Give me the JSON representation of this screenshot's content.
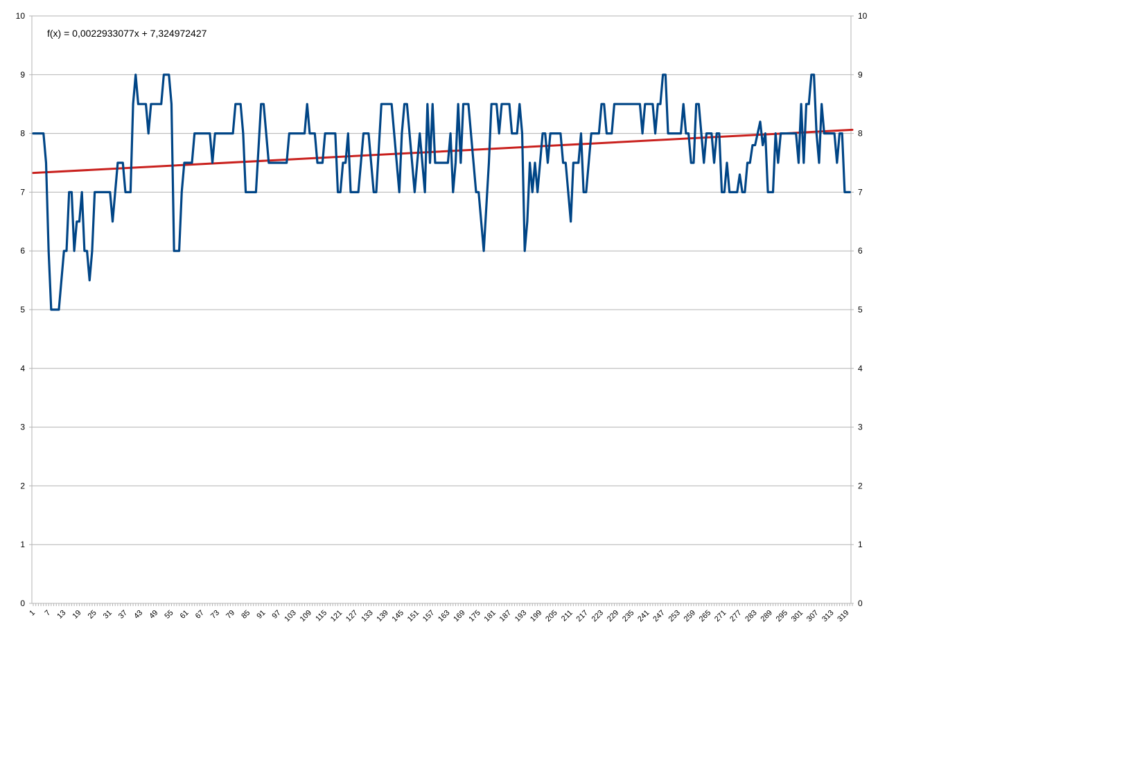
{
  "colors": {
    "series": "#004586",
    "trendline": "#c9211e",
    "grid": "#b3b3b3",
    "axis": "#b3b3b3",
    "background": "#ffffff"
  },
  "chart_data": {
    "type": "line",
    "title": "",
    "xlabel": "",
    "ylabel": "",
    "ylim": [
      0,
      10
    ],
    "yticks": [
      0,
      1,
      2,
      3,
      4,
      5,
      6,
      7,
      8,
      9,
      10
    ],
    "secondary_y_axis": true,
    "grid": "horizontal",
    "x_range": [
      1,
      321
    ],
    "x_tick_labels": [
      "1",
      "7",
      "13",
      "19",
      "25",
      "31",
      "37",
      "43",
      "49",
      "55",
      "61",
      "67",
      "73",
      "79",
      "85",
      "91",
      "97",
      "103",
      "109",
      "115",
      "121",
      "127",
      "133",
      "139",
      "145",
      "151",
      "157",
      "163",
      "169",
      "175",
      "181",
      "187",
      "193",
      "199",
      "205",
      "211",
      "217",
      "223",
      "229",
      "235",
      "241",
      "247",
      "253",
      "259",
      "265",
      "271",
      "277",
      "283",
      "289",
      "295",
      "301",
      "307",
      "313",
      "319"
    ],
    "series": [
      {
        "points": [
          [
            1,
            8
          ],
          [
            5,
            8
          ],
          [
            6,
            7.5
          ],
          [
            7,
            6
          ],
          [
            8,
            5
          ],
          [
            11,
            5
          ],
          [
            12,
            5.5
          ],
          [
            13,
            6
          ],
          [
            14,
            6
          ],
          [
            15,
            7
          ],
          [
            16,
            7
          ],
          [
            17,
            6
          ],
          [
            18,
            6.5
          ],
          [
            19,
            6.5
          ],
          [
            20,
            7
          ],
          [
            21,
            6
          ],
          [
            22,
            6
          ],
          [
            23,
            5.5
          ],
          [
            24,
            6
          ],
          [
            25,
            7
          ],
          [
            31,
            7
          ],
          [
            32,
            6.5
          ],
          [
            33,
            7
          ],
          [
            34,
            7.5
          ],
          [
            36,
            7.5
          ],
          [
            37,
            7
          ],
          [
            39,
            7
          ],
          [
            40,
            8.5
          ],
          [
            41,
            9
          ],
          [
            42,
            8.5
          ],
          [
            45,
            8.5
          ],
          [
            46,
            8
          ],
          [
            47,
            8.5
          ],
          [
            51,
            8.5
          ],
          [
            52,
            9
          ],
          [
            54,
            9
          ],
          [
            55,
            8.5
          ],
          [
            56,
            6
          ],
          [
            58,
            6
          ],
          [
            59,
            7
          ],
          [
            60,
            7.5
          ],
          [
            63,
            7.5
          ],
          [
            64,
            8
          ],
          [
            70,
            8
          ],
          [
            71,
            7.5
          ],
          [
            72,
            8
          ],
          [
            79,
            8
          ],
          [
            80,
            8.5
          ],
          [
            82,
            8.5
          ],
          [
            83,
            8
          ],
          [
            84,
            7
          ],
          [
            88,
            7
          ],
          [
            90,
            8.5
          ],
          [
            91,
            8.5
          ],
          [
            93,
            7.5
          ],
          [
            100,
            7.5
          ],
          [
            101,
            8
          ],
          [
            107,
            8
          ],
          [
            108,
            8.5
          ],
          [
            109,
            8
          ],
          [
            111,
            8
          ],
          [
            112,
            7.5
          ],
          [
            114,
            7.5
          ],
          [
            115,
            8
          ],
          [
            119,
            8
          ],
          [
            120,
            7
          ],
          [
            121,
            7
          ],
          [
            122,
            7.5
          ],
          [
            123,
            7.5
          ],
          [
            124,
            8
          ],
          [
            125,
            7
          ],
          [
            128,
            7
          ],
          [
            130,
            8
          ],
          [
            132,
            8
          ],
          [
            134,
            7
          ],
          [
            135,
            7
          ],
          [
            137,
            8.5
          ],
          [
            141,
            8.5
          ],
          [
            143,
            7.5
          ],
          [
            144,
            7
          ],
          [
            145,
            8
          ],
          [
            146,
            8.5
          ],
          [
            147,
            8.5
          ],
          [
            149,
            7.5
          ],
          [
            150,
            7
          ],
          [
            151,
            7.5
          ],
          [
            152,
            8
          ],
          [
            153,
            7.5
          ],
          [
            154,
            7
          ],
          [
            155,
            8.5
          ],
          [
            156,
            7.5
          ],
          [
            157,
            8.5
          ],
          [
            158,
            7.5
          ],
          [
            163,
            7.5
          ],
          [
            164,
            8
          ],
          [
            165,
            7
          ],
          [
            166,
            7.5
          ],
          [
            167,
            8.5
          ],
          [
            168,
            7.5
          ],
          [
            169,
            8.5
          ],
          [
            171,
            8.5
          ],
          [
            173,
            7.5
          ],
          [
            174,
            7
          ],
          [
            175,
            7
          ],
          [
            177,
            6
          ],
          [
            179,
            7.5
          ],
          [
            180,
            8.5
          ],
          [
            182,
            8.5
          ],
          [
            183,
            8
          ],
          [
            184,
            8.5
          ],
          [
            187,
            8.5
          ],
          [
            188,
            8
          ],
          [
            190,
            8
          ],
          [
            191,
            8.5
          ],
          [
            192,
            8
          ],
          [
            193,
            6
          ],
          [
            194,
            6.5
          ],
          [
            195,
            7.5
          ],
          [
            196,
            7
          ],
          [
            197,
            7.5
          ],
          [
            198,
            7
          ],
          [
            199,
            7.5
          ],
          [
            200,
            8
          ],
          [
            201,
            8
          ],
          [
            202,
            7.5
          ],
          [
            203,
            8
          ],
          [
            207,
            8
          ],
          [
            208,
            7.5
          ],
          [
            209,
            7.5
          ],
          [
            210,
            7
          ],
          [
            211,
            6.5
          ],
          [
            212,
            7.5
          ],
          [
            214,
            7.5
          ],
          [
            215,
            8
          ],
          [
            216,
            7
          ],
          [
            217,
            7
          ],
          [
            218,
            7.5
          ],
          [
            219,
            8
          ],
          [
            222,
            8
          ],
          [
            223,
            8.5
          ],
          [
            224,
            8.5
          ],
          [
            225,
            8
          ],
          [
            227,
            8
          ],
          [
            228,
            8.5
          ],
          [
            238,
            8.5
          ],
          [
            239,
            8
          ],
          [
            240,
            8.5
          ],
          [
            243,
            8.5
          ],
          [
            244,
            8
          ],
          [
            245,
            8.5
          ],
          [
            246,
            8.5
          ],
          [
            247,
            9
          ],
          [
            248,
            9
          ],
          [
            249,
            8
          ],
          [
            254,
            8
          ],
          [
            255,
            8.5
          ],
          [
            256,
            8
          ],
          [
            257,
            8
          ],
          [
            258,
            7.5
          ],
          [
            259,
            7.5
          ],
          [
            260,
            8.5
          ],
          [
            261,
            8.5
          ],
          [
            262,
            8
          ],
          [
            263,
            7.5
          ],
          [
            264,
            8
          ],
          [
            266,
            8
          ],
          [
            267,
            7.5
          ],
          [
            268,
            8
          ],
          [
            269,
            8
          ],
          [
            270,
            7
          ],
          [
            271,
            7
          ],
          [
            272,
            7.5
          ],
          [
            273,
            7
          ],
          [
            276,
            7
          ],
          [
            277,
            7.3
          ],
          [
            278,
            7
          ],
          [
            279,
            7
          ],
          [
            280,
            7.5
          ],
          [
            281,
            7.5
          ],
          [
            282,
            7.8
          ],
          [
            283,
            7.8
          ],
          [
            284,
            8
          ],
          [
            285,
            8.2
          ],
          [
            286,
            7.8
          ],
          [
            287,
            8
          ],
          [
            288,
            7
          ],
          [
            290,
            7
          ],
          [
            291,
            8
          ],
          [
            292,
            7.5
          ],
          [
            293,
            8
          ],
          [
            299,
            8
          ],
          [
            300,
            7.5
          ],
          [
            301,
            8.5
          ],
          [
            302,
            7.5
          ],
          [
            303,
            8.5
          ],
          [
            304,
            8.5
          ],
          [
            305,
            9
          ],
          [
            306,
            9
          ],
          [
            307,
            8
          ],
          [
            308,
            7.5
          ],
          [
            309,
            8.5
          ],
          [
            310,
            8
          ],
          [
            314,
            8
          ],
          [
            315,
            7.5
          ],
          [
            316,
            8
          ],
          [
            317,
            8
          ],
          [
            318,
            7
          ],
          [
            320,
            7
          ]
        ]
      }
    ],
    "trendline": {
      "equation_label": "f(x) = 0,0022933077x + 7,324972427",
      "slope": 0.0022933077,
      "intercept": 7.324972427
    }
  }
}
